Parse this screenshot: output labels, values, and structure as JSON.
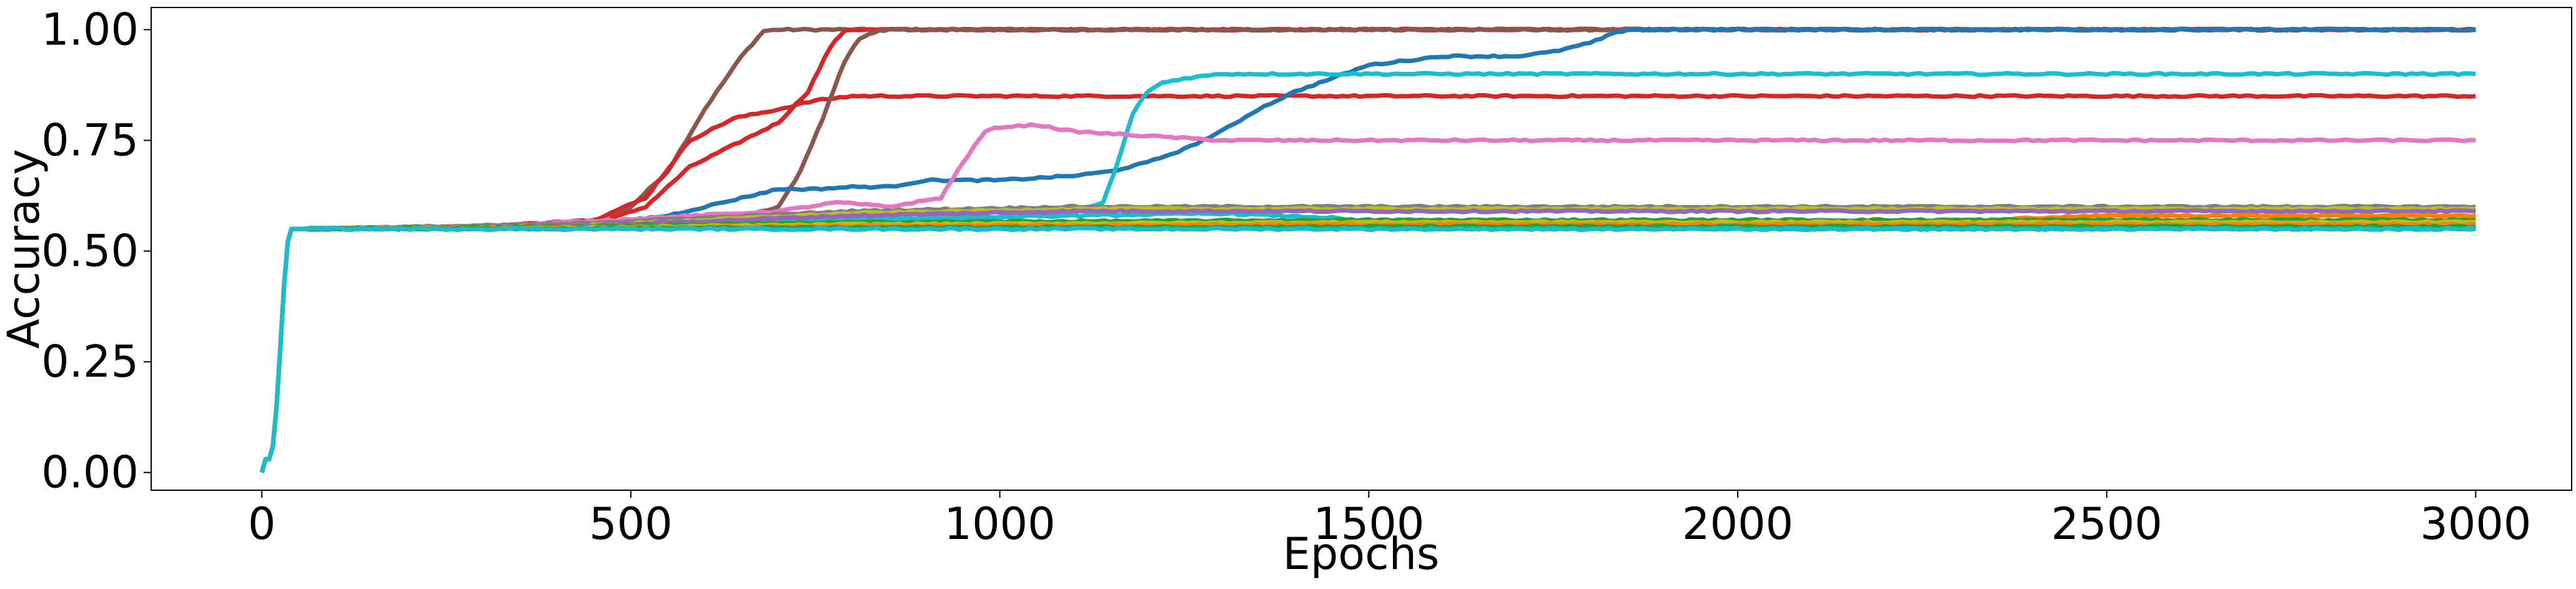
{
  "chart_data": {
    "type": "line",
    "title": "",
    "xlabel": "Epochs",
    "ylabel": "Accuracy",
    "xlim": [
      -150,
      3130
    ],
    "ylim": [
      -0.04,
      1.05
    ],
    "xticks": [
      0,
      500,
      1000,
      1500,
      2000,
      2500,
      3000
    ],
    "xtick_labels": [
      "0",
      "500",
      "1000",
      "1500",
      "2000",
      "2500",
      "3000"
    ],
    "yticks": [
      0.0,
      0.25,
      0.5,
      0.75,
      1.0
    ],
    "ytick_labels": [
      "0.00",
      "0.25",
      "0.50",
      "0.75",
      "1.00"
    ],
    "grid": false,
    "legend": "none",
    "shared_start": {
      "x": [
        0,
        5,
        10,
        15,
        20,
        25,
        30,
        35,
        40,
        45,
        50
      ],
      "y": [
        0.0,
        0.03,
        0.03,
        0.06,
        0.15,
        0.28,
        0.42,
        0.52,
        0.55,
        0.55,
        0.55
      ]
    },
    "series": [
      {
        "color": "#8c564b",
        "x": [
          50,
          300,
          450,
          500,
          550,
          600,
          650,
          680,
          700,
          720,
          750,
          3000
        ],
        "y": [
          0.55,
          0.555,
          0.57,
          0.6,
          0.68,
          0.82,
          0.94,
          0.997,
          1.0,
          1.0,
          1.0,
          1.0
        ]
      },
      {
        "color": "#d62728",
        "x": [
          50,
          300,
          450,
          520,
          580,
          640,
          700,
          740,
          770,
          790,
          800,
          3000
        ],
        "y": [
          0.55,
          0.555,
          0.56,
          0.6,
          0.69,
          0.74,
          0.79,
          0.86,
          0.96,
          0.999,
          1.0,
          1.0
        ]
      },
      {
        "color": "#d62728",
        "x": [
          50,
          300,
          450,
          520,
          580,
          640,
          700,
          750,
          800,
          1000,
          3000
        ],
        "y": [
          0.55,
          0.555,
          0.57,
          0.62,
          0.75,
          0.8,
          0.82,
          0.84,
          0.85,
          0.85,
          0.85
        ]
      },
      {
        "color": "#8c564b",
        "x": [
          50,
          300,
          500,
          620,
          700,
          730,
          760,
          790,
          810,
          830,
          850,
          3000
        ],
        "y": [
          0.55,
          0.555,
          0.56,
          0.565,
          0.6,
          0.68,
          0.8,
          0.93,
          0.98,
          0.995,
          1.0,
          1.0
        ]
      },
      {
        "color": "#1f77b4",
        "x": [
          50,
          300,
          450,
          550,
          600,
          650,
          700,
          750,
          800,
          850,
          900,
          1000,
          1100,
          1150,
          1200,
          1250,
          1300,
          1350,
          1400,
          1450,
          1500,
          1550,
          1600,
          1700,
          1750,
          1800,
          1830,
          1850,
          3000
        ],
        "y": [
          0.55,
          0.555,
          0.56,
          0.58,
          0.6,
          0.62,
          0.64,
          0.64,
          0.645,
          0.645,
          0.66,
          0.66,
          0.67,
          0.68,
          0.7,
          0.73,
          0.77,
          0.82,
          0.86,
          0.89,
          0.92,
          0.93,
          0.94,
          0.94,
          0.95,
          0.97,
          0.99,
          1.0,
          1.0
        ]
      },
      {
        "color": "#17becf",
        "x": [
          50,
          300,
          700,
          1000,
          1100,
          1140,
          1160,
          1180,
          1200,
          1220,
          1250,
          1300,
          1400,
          1600,
          2000,
          2500,
          3000
        ],
        "y": [
          0.55,
          0.555,
          0.565,
          0.575,
          0.585,
          0.61,
          0.7,
          0.81,
          0.86,
          0.88,
          0.89,
          0.9,
          0.9,
          0.9,
          0.9,
          0.9,
          0.9
        ]
      },
      {
        "color": "#e377c2",
        "x": [
          50,
          300,
          700,
          780,
          850,
          920,
          950,
          980,
          1000,
          1050,
          1100,
          1200,
          1300,
          1400,
          1600,
          2000,
          3000
        ],
        "y": [
          0.55,
          0.555,
          0.59,
          0.61,
          0.6,
          0.62,
          0.7,
          0.77,
          0.78,
          0.785,
          0.77,
          0.76,
          0.75,
          0.75,
          0.75,
          0.75,
          0.75
        ]
      },
      {
        "color": "#17becf",
        "x": [
          50,
          300,
          700,
          1100,
          1300,
          1450,
          1550,
          1600,
          2000,
          3000
        ],
        "y": [
          0.55,
          0.555,
          0.57,
          0.58,
          0.585,
          0.575,
          0.55,
          0.55,
          0.55,
          0.55
        ]
      },
      {
        "color": "#7f7f7f",
        "x": [
          50,
          400,
          800,
          1100,
          1500,
          2000,
          3000
        ],
        "y": [
          0.55,
          0.56,
          0.59,
          0.6,
          0.6,
          0.6,
          0.6
        ]
      },
      {
        "color": "#bcbd22",
        "x": [
          50,
          400,
          800,
          1100,
          1500,
          2000,
          3000
        ],
        "y": [
          0.55,
          0.555,
          0.585,
          0.595,
          0.595,
          0.595,
          0.595
        ]
      },
      {
        "color": "#9467bd",
        "x": [
          50,
          400,
          800,
          1100,
          1500,
          2000,
          3000
        ],
        "y": [
          0.55,
          0.555,
          0.58,
          0.59,
          0.59,
          0.59,
          0.59
        ]
      },
      {
        "color": "#ff7f0e",
        "x": [
          50,
          400,
          800,
          1500,
          2000,
          2300,
          2400,
          2500,
          3000
        ],
        "y": [
          0.55,
          0.555,
          0.56,
          0.565,
          0.565,
          0.565,
          0.575,
          0.58,
          0.58
        ]
      },
      {
        "color": "#2ca02c",
        "x": [
          50,
          400,
          800,
          1500,
          2000,
          3000
        ],
        "y": [
          0.55,
          0.555,
          0.565,
          0.57,
          0.57,
          0.57
        ]
      },
      {
        "color": "#bcbd22",
        "x": [
          50,
          400,
          800,
          1500,
          2000,
          3000
        ],
        "y": [
          0.55,
          0.552,
          0.56,
          0.565,
          0.565,
          0.565
        ]
      },
      {
        "color": "#ff7f0e",
        "x": [
          50,
          400,
          800,
          1500,
          2000,
          3000
        ],
        "y": [
          0.55,
          0.552,
          0.556,
          0.56,
          0.56,
          0.56
        ]
      },
      {
        "color": "#2ca02c",
        "x": [
          50,
          400,
          800,
          1500,
          2000,
          3000
        ],
        "y": [
          0.55,
          0.551,
          0.553,
          0.555,
          0.555,
          0.555
        ]
      },
      {
        "color": "#17becf",
        "x": [
          50,
          3000
        ],
        "y": [
          0.55,
          0.55
        ]
      }
    ]
  }
}
